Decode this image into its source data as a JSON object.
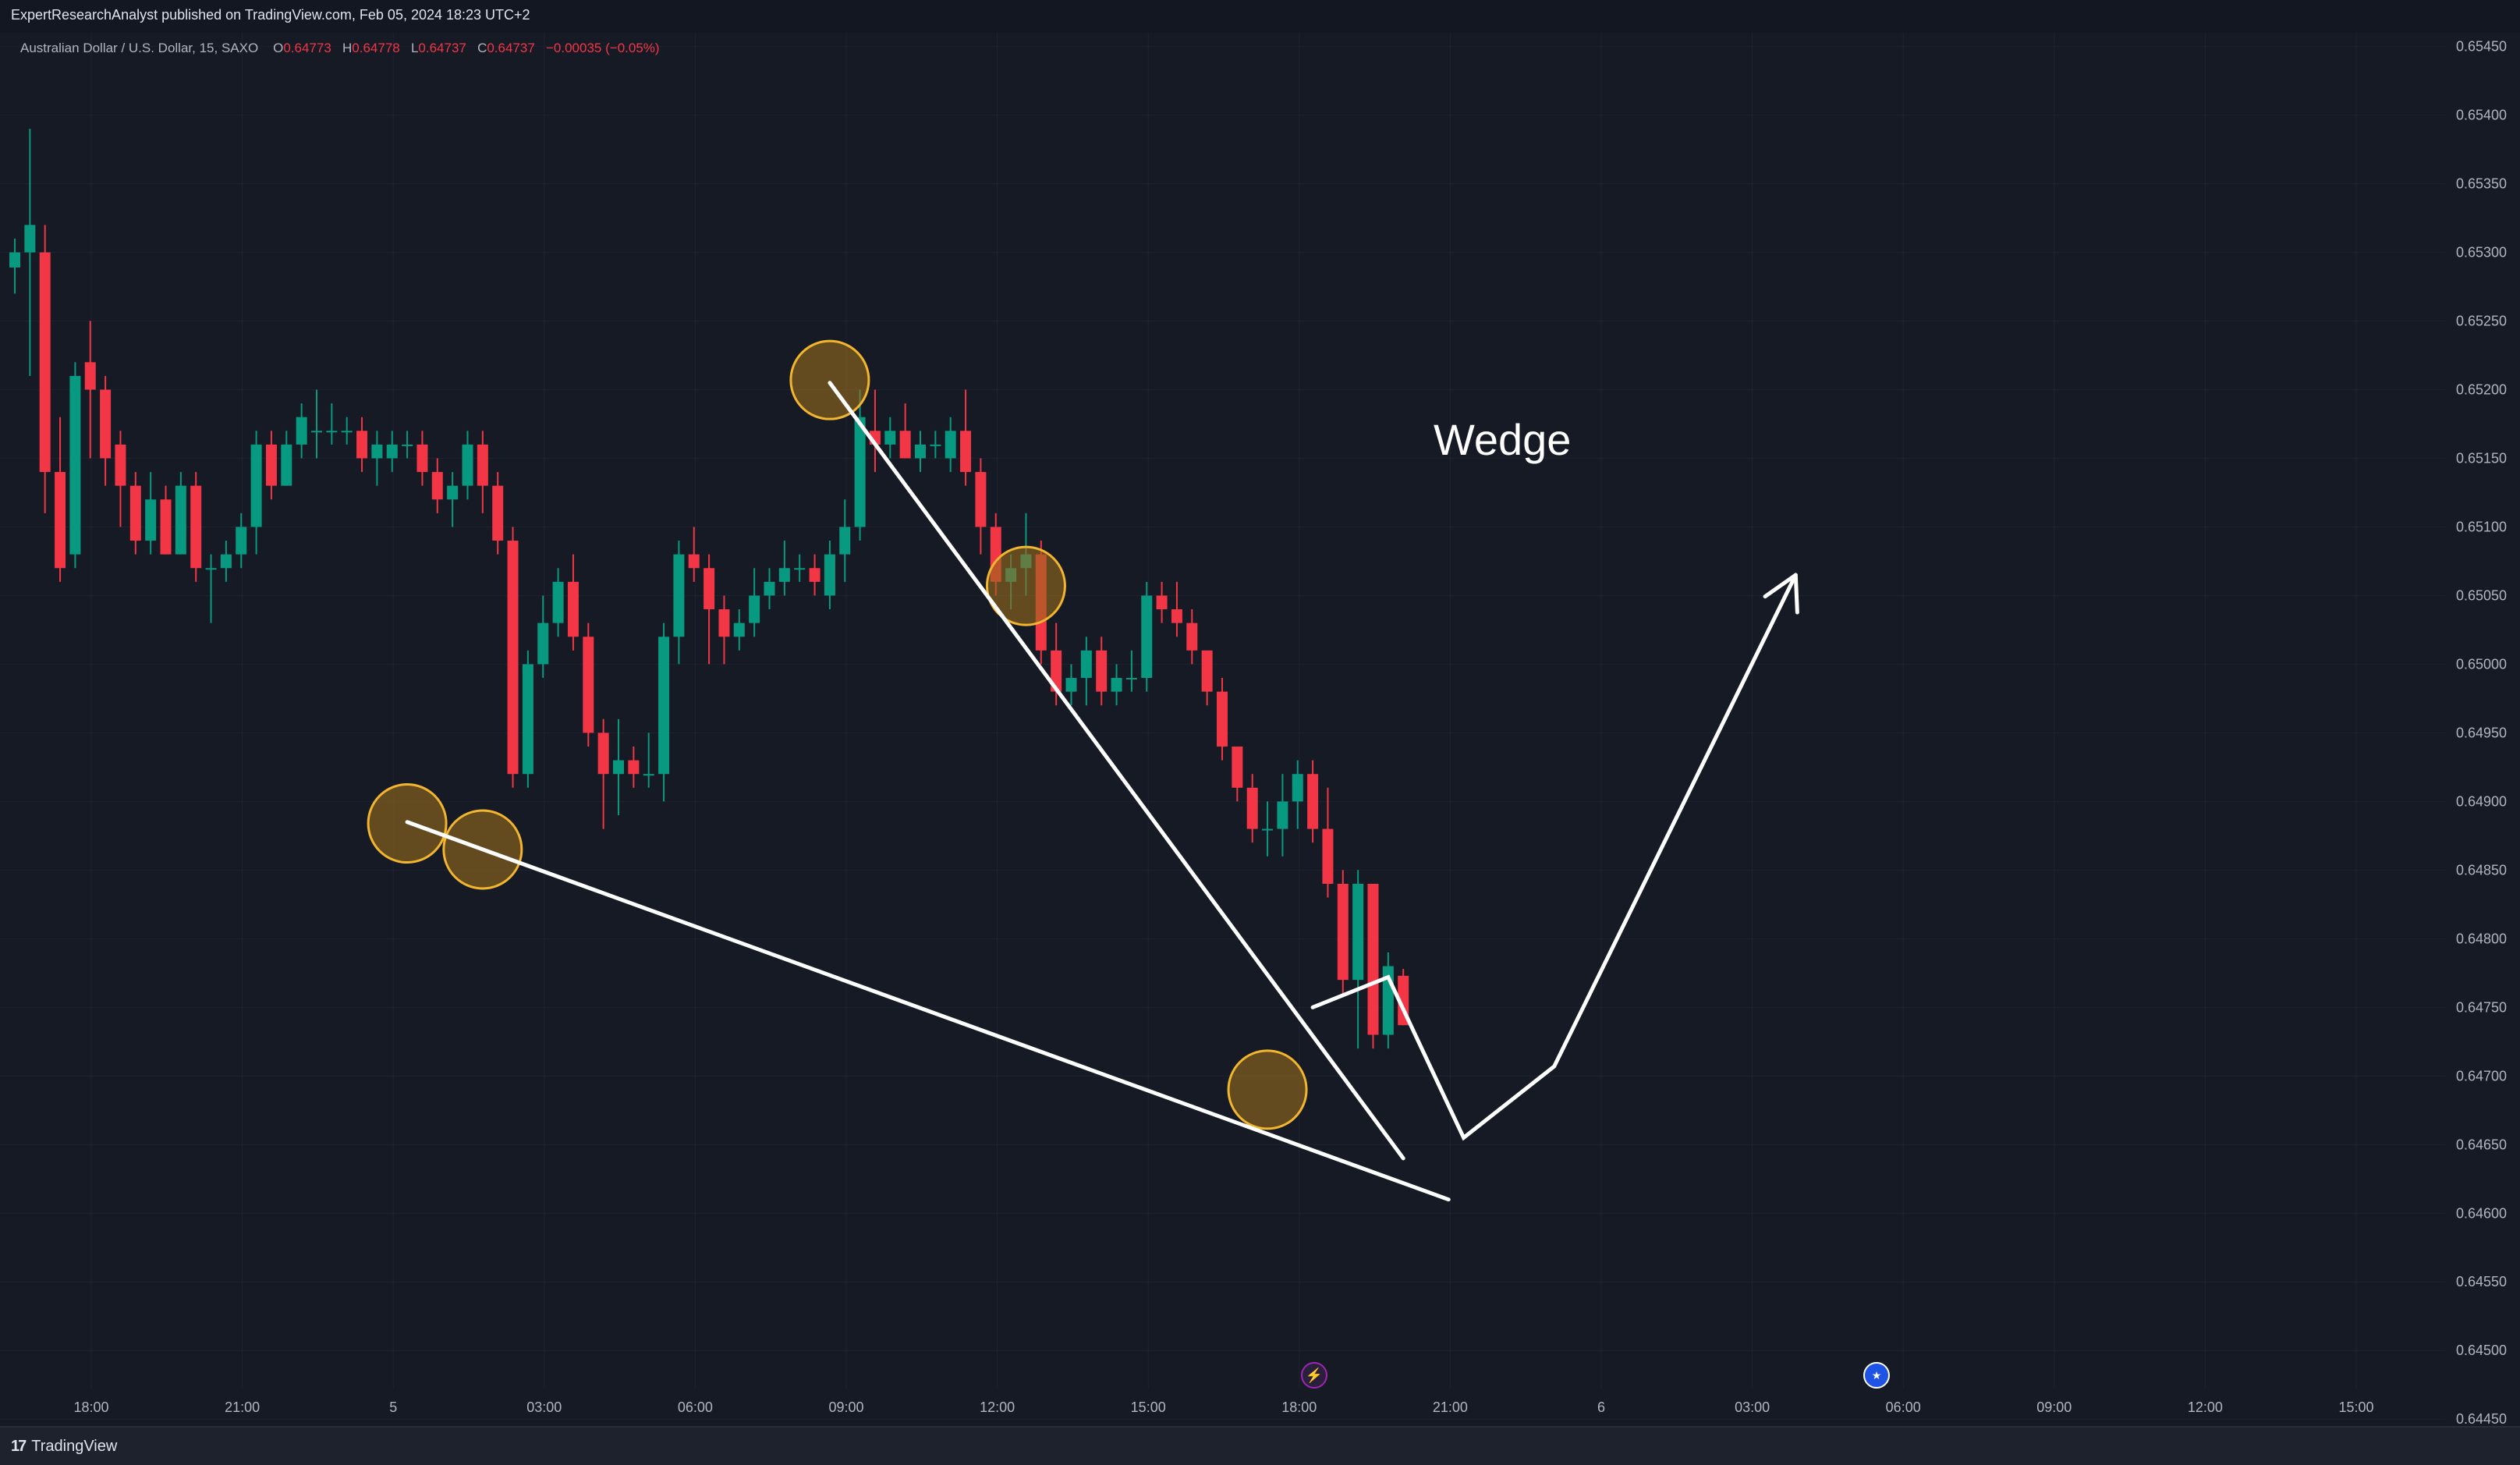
{
  "header": {
    "publisher_text": "ExpertResearchAnalyst published on TradingView.com, Feb 05, 2024 18:23 UTC+2"
  },
  "legend": {
    "symbol": "Australian Dollar / U.S. Dollar, 15, SAXO",
    "open_label": "O",
    "open": "0.64773",
    "high_label": "H",
    "high": "0.64778",
    "low_label": "L",
    "low": "0.64737",
    "close_label": "C",
    "close": "0.64737",
    "change": "−0.00035 (−0.05%)"
  },
  "footer": {
    "brand": "TradingView",
    "logo_icon": "tradingview-logo-icon"
  },
  "events": [
    {
      "icon": "lightning-icon",
      "time": "18:00",
      "color": "#9c27b0"
    },
    {
      "icon": "australia-flag-icon",
      "time": "06:00",
      "color": "#1e53e5"
    }
  ],
  "colors": {
    "up": "#089981",
    "down": "#f23645",
    "background": "#161a25",
    "circle_fill": "#9a6b1c",
    "circle_stroke": "#f2b52e",
    "drawing": "#ffffff"
  },
  "chart_data": {
    "type": "candlestick",
    "symbol": "AUDUSD",
    "interval": "15",
    "y_ticks": [
      "0.65450",
      "0.65400",
      "0.65350",
      "0.65300",
      "0.65250",
      "0.65200",
      "0.65150",
      "0.65100",
      "0.65050",
      "0.65000",
      "0.64950",
      "0.64900",
      "0.64850",
      "0.64800",
      "0.64750",
      "0.64700",
      "0.64650",
      "0.64600",
      "0.64550",
      "0.64500",
      "0.64450"
    ],
    "ylim": [
      0.64445,
      0.6546
    ],
    "x_ticks": [
      "18:00",
      "21:00",
      "5",
      "03:00",
      "06:00",
      "09:00",
      "12:00",
      "15:00",
      "18:00",
      "21:00",
      "6",
      "03:00",
      "06:00",
      "09:00",
      "12:00",
      "15:00"
    ],
    "candles": [
      [
        0.65289,
        0.6531,
        0.6527,
        0.653
      ],
      [
        0.653,
        0.6539,
        0.6521,
        0.6532
      ],
      [
        0.653,
        0.6532,
        0.6511,
        0.6514
      ],
      [
        0.6514,
        0.6518,
        0.6506,
        0.6507
      ],
      [
        0.6508,
        0.6522,
        0.6507,
        0.6521
      ],
      [
        0.6522,
        0.6525,
        0.6515,
        0.652
      ],
      [
        0.652,
        0.6521,
        0.6513,
        0.6515
      ],
      [
        0.6516,
        0.6517,
        0.651,
        0.6513
      ],
      [
        0.6513,
        0.6514,
        0.6508,
        0.6509
      ],
      [
        0.6509,
        0.6514,
        0.6508,
        0.6512
      ],
      [
        0.6512,
        0.6513,
        0.6508,
        0.6508
      ],
      [
        0.6508,
        0.6514,
        0.6508,
        0.6513
      ],
      [
        0.6513,
        0.6514,
        0.6506,
        0.6507
      ],
      [
        0.6507,
        0.6508,
        0.6503,
        0.6507
      ],
      [
        0.6507,
        0.6509,
        0.6506,
        0.6508
      ],
      [
        0.6508,
        0.6511,
        0.6507,
        0.651
      ],
      [
        0.651,
        0.6517,
        0.6508,
        0.6516
      ],
      [
        0.6516,
        0.6517,
        0.6512,
        0.6513
      ],
      [
        0.6513,
        0.6517,
        0.6513,
        0.6516
      ],
      [
        0.6516,
        0.6519,
        0.6515,
        0.6518
      ],
      [
        0.6517,
        0.652,
        0.6515,
        0.6517
      ],
      [
        0.6517,
        0.6519,
        0.6516,
        0.6517
      ],
      [
        0.6517,
        0.6518,
        0.6516,
        0.6517
      ],
      [
        0.6517,
        0.6518,
        0.6514,
        0.6515
      ],
      [
        0.6515,
        0.6517,
        0.6513,
        0.6516
      ],
      [
        0.6515,
        0.6517,
        0.6514,
        0.6516
      ],
      [
        0.6516,
        0.6517,
        0.6515,
        0.6516
      ],
      [
        0.6516,
        0.6517,
        0.6513,
        0.6514
      ],
      [
        0.6514,
        0.6515,
        0.6511,
        0.6512
      ],
      [
        0.6512,
        0.6514,
        0.651,
        0.6513
      ],
      [
        0.6513,
        0.6517,
        0.6512,
        0.6516
      ],
      [
        0.6516,
        0.6517,
        0.6511,
        0.6513
      ],
      [
        0.6513,
        0.6514,
        0.6508,
        0.6509
      ],
      [
        0.6509,
        0.651,
        0.6491,
        0.6492
      ],
      [
        0.6492,
        0.6501,
        0.6491,
        0.65
      ],
      [
        0.65,
        0.6505,
        0.6499,
        0.6503
      ],
      [
        0.6503,
        0.6507,
        0.6502,
        0.6506
      ],
      [
        0.6506,
        0.6508,
        0.6501,
        0.6502
      ],
      [
        0.6502,
        0.6503,
        0.6494,
        0.6495
      ],
      [
        0.6495,
        0.6496,
        0.6488,
        0.6492
      ],
      [
        0.6492,
        0.6496,
        0.6489,
        0.6493
      ],
      [
        0.6493,
        0.6494,
        0.6491,
        0.6492
      ],
      [
        0.6492,
        0.6495,
        0.6491,
        0.6492
      ],
      [
        0.6492,
        0.6503,
        0.649,
        0.6502
      ],
      [
        0.6502,
        0.6509,
        0.65,
        0.6508
      ],
      [
        0.6508,
        0.651,
        0.6506,
        0.6507
      ],
      [
        0.6507,
        0.6508,
        0.65,
        0.6504
      ],
      [
        0.6504,
        0.6505,
        0.65,
        0.6502
      ],
      [
        0.6502,
        0.6504,
        0.6501,
        0.6503
      ],
      [
        0.6503,
        0.6507,
        0.6502,
        0.6505
      ],
      [
        0.6505,
        0.6507,
        0.6504,
        0.6506
      ],
      [
        0.6506,
        0.6509,
        0.6505,
        0.6507
      ],
      [
        0.6507,
        0.6508,
        0.6506,
        0.6507
      ],
      [
        0.6507,
        0.6508,
        0.6505,
        0.6506
      ],
      [
        0.6505,
        0.6509,
        0.6504,
        0.6508
      ],
      [
        0.6508,
        0.6512,
        0.6506,
        0.651
      ],
      [
        0.651,
        0.652,
        0.6509,
        0.6518
      ],
      [
        0.6517,
        0.652,
        0.6514,
        0.6516
      ],
      [
        0.6516,
        0.6518,
        0.6515,
        0.6517
      ],
      [
        0.6517,
        0.6519,
        0.6515,
        0.6515
      ],
      [
        0.6515,
        0.6517,
        0.6514,
        0.6516
      ],
      [
        0.6516,
        0.6517,
        0.6515,
        0.6516
      ],
      [
        0.6515,
        0.6518,
        0.6514,
        0.6517
      ],
      [
        0.6517,
        0.652,
        0.6513,
        0.6514
      ],
      [
        0.6514,
        0.6515,
        0.6508,
        0.651
      ],
      [
        0.651,
        0.6511,
        0.6505,
        0.6506
      ],
      [
        0.6506,
        0.6508,
        0.6504,
        0.6507
      ],
      [
        0.6507,
        0.6511,
        0.6505,
        0.6508
      ],
      [
        0.6508,
        0.6509,
        0.65,
        0.6501
      ],
      [
        0.6501,
        0.6503,
        0.6497,
        0.6498
      ],
      [
        0.6498,
        0.65,
        0.6497,
        0.6499
      ],
      [
        0.6499,
        0.6502,
        0.6497,
        0.6501
      ],
      [
        0.6501,
        0.6502,
        0.6497,
        0.6498
      ],
      [
        0.6498,
        0.65,
        0.6497,
        0.6499
      ],
      [
        0.6499,
        0.6501,
        0.6498,
        0.6499
      ],
      [
        0.6499,
        0.6506,
        0.6498,
        0.6505
      ],
      [
        0.6505,
        0.6506,
        0.6503,
        0.6504
      ],
      [
        0.6504,
        0.6506,
        0.6502,
        0.6503
      ],
      [
        0.6503,
        0.6504,
        0.65,
        0.6501
      ],
      [
        0.6501,
        0.6501,
        0.6497,
        0.6498
      ],
      [
        0.6498,
        0.6499,
        0.6493,
        0.6494
      ],
      [
        0.6494,
        0.6494,
        0.649,
        0.6491
      ],
      [
        0.6491,
        0.6492,
        0.6487,
        0.6488
      ],
      [
        0.6488,
        0.649,
        0.6486,
        0.6488
      ],
      [
        0.6488,
        0.6492,
        0.6486,
        0.649
      ],
      [
        0.649,
        0.6493,
        0.6488,
        0.6492
      ],
      [
        0.6492,
        0.6493,
        0.6487,
        0.6488
      ],
      [
        0.6488,
        0.6491,
        0.6483,
        0.6484
      ],
      [
        0.6484,
        0.6485,
        0.6476,
        0.6477
      ],
      [
        0.6477,
        0.6485,
        0.6472,
        0.6484
      ],
      [
        0.6484,
        0.6484,
        0.6472,
        0.6473
      ],
      [
        0.6473,
        0.6479,
        0.6472,
        0.6478
      ],
      [
        0.64773,
        0.64778,
        0.64737,
        0.64737
      ]
    ],
    "annotations": {
      "label": "Wedge",
      "upper_line": [
        [
          0.65205,
          54
        ],
        [
          0.6464,
          92
        ]
      ],
      "lower_line": [
        [
          0.64885,
          26
        ],
        [
          0.6461,
          95
        ]
      ],
      "circles": [
        [
          26,
          0.64884
        ],
        [
          31,
          0.64865
        ],
        [
          54,
          0.65207
        ],
        [
          67,
          0.65057
        ],
        [
          83,
          0.6469
        ]
      ],
      "projection_path": [
        [
          86,
          0.6475
        ],
        [
          91,
          0.64772
        ],
        [
          96,
          0.64655
        ],
        [
          102,
          0.64707
        ],
        [
          118,
          0.65065
        ]
      ]
    }
  }
}
